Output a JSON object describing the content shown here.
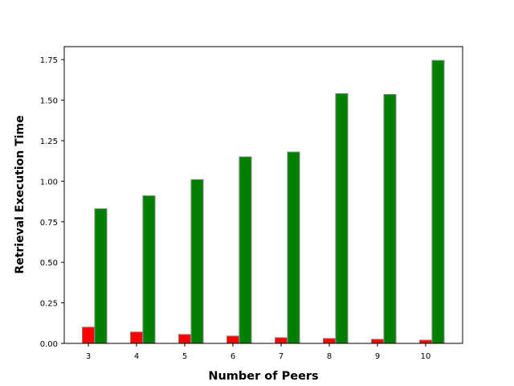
{
  "chart_data": {
    "type": "bar",
    "title": "",
    "xlabel": "Number of Peers",
    "ylabel": "Retrieval Execution Time",
    "categories": [
      "3",
      "4",
      "5",
      "6",
      "7",
      "8",
      "9",
      "10"
    ],
    "series": [
      {
        "color": "#ff0000",
        "values": [
          0.1,
          0.07,
          0.055,
          0.045,
          0.035,
          0.03,
          0.025,
          0.02
        ]
      },
      {
        "color": "#008000",
        "values": [
          0.83,
          0.91,
          1.01,
          1.15,
          1.18,
          1.54,
          1.535,
          1.745
        ]
      }
    ],
    "ylim": [
      0,
      1.83
    ],
    "yticks": [
      "0.00",
      "0.25",
      "0.50",
      "0.75",
      "1.00",
      "1.25",
      "1.50",
      "1.75"
    ],
    "ytick_values": [
      0,
      0.25,
      0.5,
      0.75,
      1.0,
      1.25,
      1.5,
      1.75
    ],
    "grid": false,
    "legend": "none"
  }
}
